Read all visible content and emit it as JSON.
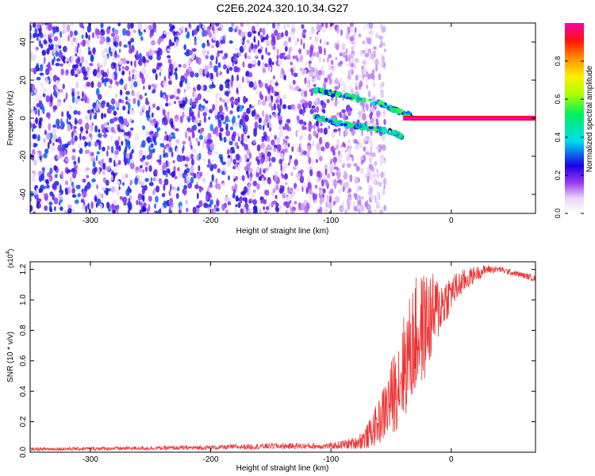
{
  "page": {
    "title": "C2E6.2024.320.10.34.G27"
  },
  "chart_data": [
    {
      "type": "heatmap",
      "title": "C2E6.2024.320.10.34.G27",
      "xlabel": "Height of straight line (km)",
      "ylabel": "Frequency (Hz)",
      "xlim": [
        -350,
        70
      ],
      "ylim": [
        -50,
        50
      ],
      "x_ticks": [
        -300,
        -200,
        -100,
        0
      ],
      "x_tick_labels": [
        "-300",
        "-200",
        "-100",
        "0"
      ],
      "y_ticks": [
        -40,
        -20,
        0,
        20,
        40
      ],
      "y_tick_labels": [
        "-40",
        "-20",
        "0",
        "20",
        "40"
      ],
      "colorbar": {
        "label": "Normalized spectral amplitude",
        "range": [
          0,
          1
        ],
        "ticks": [
          0.0,
          0.2,
          0.4,
          0.6,
          0.8
        ],
        "tick_labels": [
          "0.0",
          "0.2",
          "0.4",
          "0.6",
          "0.8"
        ],
        "colormap": "rainbow (white-purple-blue-cyan-green-yellow-red-magenta)"
      },
      "features": {
        "noise_region_x": [
          -350,
          -80
        ],
        "carrier_line": {
          "x_start": -40,
          "x_end": 70,
          "frequency": 0,
          "amplitude": 1.0
        },
        "upper_branch": {
          "x": [
            -115,
            -90,
            -60,
            -45,
            -32
          ],
          "frequency": [
            15,
            12,
            8,
            4,
            1
          ]
        },
        "lower_branch": {
          "x": [
            -115,
            -90,
            -70,
            -50,
            -40
          ],
          "frequency": [
            1,
            -3,
            -5,
            -7,
            -10
          ]
        }
      }
    },
    {
      "type": "line",
      "xlabel": "Height of straight line (km)",
      "ylabel": "SNR (10 * v/v)",
      "y_scale_label": "(x10",
      "y_scale_exponent": "4",
      "y_scale_close": ")",
      "xlim": [
        -350,
        70
      ],
      "ylim": [
        0,
        1.25
      ],
      "x_ticks": [
        -300,
        -200,
        -100,
        0
      ],
      "x_tick_labels": [
        "-300",
        "-200",
        "-100",
        "0"
      ],
      "y_ticks": [
        0.0,
        0.2,
        0.4,
        0.6,
        0.8,
        1.0,
        1.2
      ],
      "y_tick_labels": [
        "0.0",
        "0.2",
        "0.4",
        "0.6",
        "0.8",
        "1.0",
        "1.2"
      ],
      "line_color": "#ee3333",
      "envelope": {
        "x": [
          -350,
          -200,
          -150,
          -100,
          -80,
          -70,
          -60,
          -50,
          -40,
          -30,
          -20,
          -10,
          0,
          10,
          20,
          30,
          40,
          50,
          60,
          70
        ],
        "y": [
          0.02,
          0.03,
          0.04,
          0.04,
          0.06,
          0.1,
          0.2,
          0.35,
          0.55,
          0.75,
          0.85,
          0.95,
          1.05,
          1.12,
          1.17,
          1.2,
          1.2,
          1.18,
          1.16,
          1.14
        ],
        "noise_amplitude": [
          0.01,
          0.015,
          0.02,
          0.02,
          0.04,
          0.08,
          0.15,
          0.25,
          0.35,
          0.4,
          0.35,
          0.2,
          0.12,
          0.08,
          0.05,
          0.03,
          0.02,
          0.02,
          0.02,
          0.02
        ]
      }
    }
  ]
}
